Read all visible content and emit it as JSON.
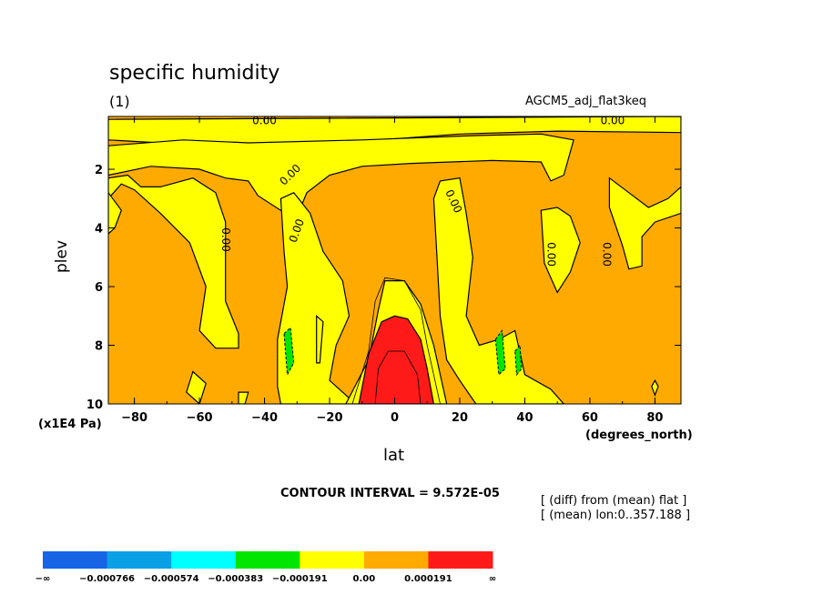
{
  "chart_data": {
    "type": "contour",
    "title": "specific humidity",
    "subtitle": "(1)",
    "dataset": "AGCM5_adj_flat3keq",
    "xlabel": "lat",
    "x_units": "(degrees_north)",
    "ylabel": "plev",
    "y_units": "(x1E4 Pa)",
    "xlim": [
      -88,
      88
    ],
    "ylim": [
      10,
      0.2
    ],
    "y_reversed": true,
    "x_ticks": [
      -80,
      -60,
      -40,
      -20,
      0,
      20,
      40,
      60,
      80
    ],
    "x_tick_labels": [
      "−80",
      "−60",
      "−40",
      "−20",
      "0",
      "20",
      "40",
      "60",
      "80"
    ],
    "y_ticks": [
      2,
      4,
      6,
      8,
      10
    ],
    "y_tick_labels": [
      "2",
      "4",
      "6",
      "8",
      "10"
    ],
    "contour_interval_text": "CONTOUR INTERVAL = 9.572E-05",
    "notes": [
      "[ (diff) from (mean) flat ]",
      "[ (mean) lon:0..357.188 ]"
    ],
    "contour_labels": [
      "0.00",
      "0.00",
      "0.00",
      "0.00",
      "0.00",
      "0.00",
      "0.00",
      "0.00",
      "0.00"
    ],
    "levels": [
      -0.000766,
      -0.000574,
      -0.000383,
      -0.000191,
      0.0,
      0.000191
    ],
    "colorbar": {
      "labels": [
        "−∞",
        "−0.000766",
        "−0.000574",
        "−0.000383",
        "−0.000191",
        "0.00",
        "0.000191",
        "∞"
      ],
      "colors": [
        "#1565e6",
        "#0aa0e6",
        "#00ffff",
        "#00e600",
        "#ffff00",
        "#ffaa00",
        "#ff1a1a"
      ]
    },
    "regions": [
      {
        "name": "background",
        "color": "#ffaa00",
        "polygon": [
          [
            -88,
            0.2
          ],
          [
            88,
            0.2
          ],
          [
            88,
            10
          ],
          [
            -88,
            10
          ]
        ]
      },
      {
        "name": "upper-band",
        "color": "#ffff00",
        "polygon": [
          [
            -88,
            0.3
          ],
          [
            88,
            0.2
          ],
          [
            88,
            0.75
          ],
          [
            50,
            0.7
          ],
          [
            20,
            0.8
          ],
          [
            -5,
            1.0
          ],
          [
            -40,
            1.3
          ],
          [
            -88,
            1.0
          ]
        ]
      },
      {
        "name": "upper-mid",
        "color": "#ffff00",
        "polygon": [
          [
            -65,
            1.0
          ],
          [
            -45,
            1.1
          ],
          [
            -10,
            1.0
          ],
          [
            25,
            0.85
          ],
          [
            45,
            0.8
          ],
          [
            55,
            1.0
          ],
          [
            52,
            2.2
          ],
          [
            48,
            2.4
          ],
          [
            45,
            1.75
          ],
          [
            30,
            1.7
          ],
          [
            5,
            1.8
          ],
          [
            -10,
            1.9
          ],
          [
            -20,
            2.2
          ],
          [
            -27,
            2.8
          ],
          [
            -30,
            3.6
          ],
          [
            -35,
            3.4
          ],
          [
            -42,
            2.9
          ],
          [
            -45,
            2.4
          ],
          [
            -52,
            2.3
          ],
          [
            -60,
            2.0
          ],
          [
            -75,
            1.9
          ],
          [
            -88,
            2.2
          ],
          [
            -88,
            1.2
          ]
        ]
      },
      {
        "name": "left-bump",
        "color": "#ffff00",
        "polygon": [
          [
            -88,
            2.3
          ],
          [
            -82,
            2.2
          ],
          [
            -78,
            2.6
          ],
          [
            -72,
            2.6
          ],
          [
            -62,
            2.3
          ],
          [
            -55,
            2.8
          ],
          [
            -52,
            3.8
          ],
          [
            -52,
            6.5
          ],
          [
            -48,
            7.6
          ],
          [
            -48,
            8.1
          ],
          [
            -55,
            8.1
          ],
          [
            -60,
            7.5
          ],
          [
            -58,
            6.0
          ],
          [
            -63,
            4.5
          ],
          [
            -72,
            3.5
          ],
          [
            -80,
            2.7
          ],
          [
            -84,
            2.5
          ],
          [
            -88,
            3.0
          ]
        ]
      },
      {
        "name": "left-edge",
        "color": "#ffff00",
        "polygon": [
          [
            -88,
            2.8
          ],
          [
            -84,
            3.4
          ],
          [
            -86,
            4.0
          ],
          [
            -88,
            4.2
          ]
        ]
      },
      {
        "name": "left-cell",
        "color": "#ffff00",
        "polygon": [
          [
            -35,
            3.0
          ],
          [
            -31,
            2.8
          ],
          [
            -26,
            3.5
          ],
          [
            -22,
            4.8
          ],
          [
            -16,
            5.8
          ],
          [
            -14,
            7.0
          ],
          [
            -18,
            8.0
          ],
          [
            -20,
            9.2
          ],
          [
            -12,
            10
          ],
          [
            -35,
            10
          ],
          [
            -36,
            9.4
          ],
          [
            -36,
            7.8
          ],
          [
            -33,
            6.0
          ],
          [
            -34,
            4.8
          ]
        ]
      },
      {
        "name": "left-dots",
        "color": "#ffff00",
        "polygon": [
          [
            -24,
            7.0
          ],
          [
            -22,
            7.2
          ],
          [
            -23,
            8.6
          ],
          [
            -24,
            8.6
          ]
        ]
      },
      {
        "name": "left-small",
        "color": "#ffff00",
        "polygon": [
          [
            -62,
            8.9
          ],
          [
            -58,
            9.3
          ],
          [
            -60,
            10
          ],
          [
            -64,
            9.6
          ]
        ]
      },
      {
        "name": "left-small2",
        "color": "#ffff00",
        "polygon": [
          [
            -48,
            9.6
          ],
          [
            -45,
            9.6
          ],
          [
            -46,
            10
          ],
          [
            -48,
            10
          ]
        ]
      },
      {
        "name": "center-plume",
        "color": "#ffff00",
        "polygon": [
          [
            -15,
            10
          ],
          [
            -8,
            8.5
          ],
          [
            -5,
            6.8
          ],
          [
            -3,
            5.8
          ],
          [
            3,
            5.8
          ],
          [
            8,
            6.6
          ],
          [
            12,
            8.0
          ],
          [
            16,
            10
          ]
        ]
      },
      {
        "name": "right-cell",
        "color": "#ffff00",
        "polygon": [
          [
            12,
            3.0
          ],
          [
            14,
            2.4
          ],
          [
            20,
            2.3
          ],
          [
            22,
            3.5
          ],
          [
            24,
            5.0
          ],
          [
            22,
            7.0
          ],
          [
            26,
            8.0
          ],
          [
            32,
            7.8
          ],
          [
            37,
            7.5
          ],
          [
            38,
            8.0
          ],
          [
            40,
            9.0
          ],
          [
            48,
            9.5
          ],
          [
            52,
            10
          ],
          [
            25,
            10
          ],
          [
            20,
            9.2
          ],
          [
            16,
            8.5
          ],
          [
            14,
            7.0
          ],
          [
            13,
            5.0
          ]
        ]
      },
      {
        "name": "right-col",
        "color": "#ffff00",
        "polygon": [
          [
            45,
            3.4
          ],
          [
            50,
            3.3
          ],
          [
            54,
            3.6
          ],
          [
            57,
            4.5
          ],
          [
            54,
            5.5
          ],
          [
            50,
            6.2
          ],
          [
            46,
            5.2
          ]
        ]
      },
      {
        "name": "right-edge",
        "color": "#ffff00",
        "polygon": [
          [
            66,
            2.3
          ],
          [
            72,
            2.8
          ],
          [
            78,
            3.3
          ],
          [
            84,
            3.0
          ],
          [
            88,
            2.6
          ],
          [
            88,
            3.5
          ],
          [
            80,
            3.8
          ],
          [
            76,
            4.3
          ],
          [
            76,
            5.3
          ],
          [
            72,
            5.4
          ],
          [
            70,
            4.6
          ],
          [
            66,
            3.3
          ]
        ]
      },
      {
        "name": "right-small",
        "color": "#ffff00",
        "polygon": [
          [
            80,
            9.2
          ],
          [
            81,
            9.4
          ],
          [
            80,
            9.7
          ],
          [
            79,
            9.4
          ]
        ]
      },
      {
        "name": "red-core",
        "color": "#ff1a1a",
        "polygon": [
          [
            -11,
            10
          ],
          [
            -8,
            8.3
          ],
          [
            -4,
            7.2
          ],
          [
            0,
            7.0
          ],
          [
            4,
            7.1
          ],
          [
            8,
            7.8
          ],
          [
            10,
            8.8
          ],
          [
            12,
            10
          ]
        ]
      }
    ],
    "contour_lines": [
      [
        [
          -6,
          10
        ],
        [
          -5,
          8.8
        ],
        [
          -2,
          8.2
        ],
        [
          3,
          8.2
        ],
        [
          7,
          9.0
        ],
        [
          8,
          10
        ]
      ],
      [
        [
          -13,
          10
        ],
        [
          -8,
          8.2
        ],
        [
          -6,
          6.5
        ],
        [
          -3,
          5.7
        ],
        [
          3,
          5.8
        ],
        [
          8,
          6.8
        ],
        [
          10,
          8.0
        ],
        [
          14,
          10
        ]
      ]
    ],
    "negative_patches": [
      {
        "color": "#00e600",
        "polygon": [
          [
            -34,
            7.6
          ],
          [
            -32,
            7.4
          ],
          [
            -31,
            8.6
          ],
          [
            -33,
            9.0
          ]
        ]
      },
      {
        "color": "#00e600",
        "polygon": [
          [
            31,
            7.8
          ],
          [
            33,
            7.5
          ],
          [
            34,
            8.8
          ],
          [
            32,
            9.0
          ]
        ]
      },
      {
        "color": "#00e600",
        "polygon": [
          [
            37,
            8.2
          ],
          [
            38.5,
            8.0
          ],
          [
            39,
            8.8
          ],
          [
            37.5,
            9.0
          ]
        ]
      }
    ]
  }
}
